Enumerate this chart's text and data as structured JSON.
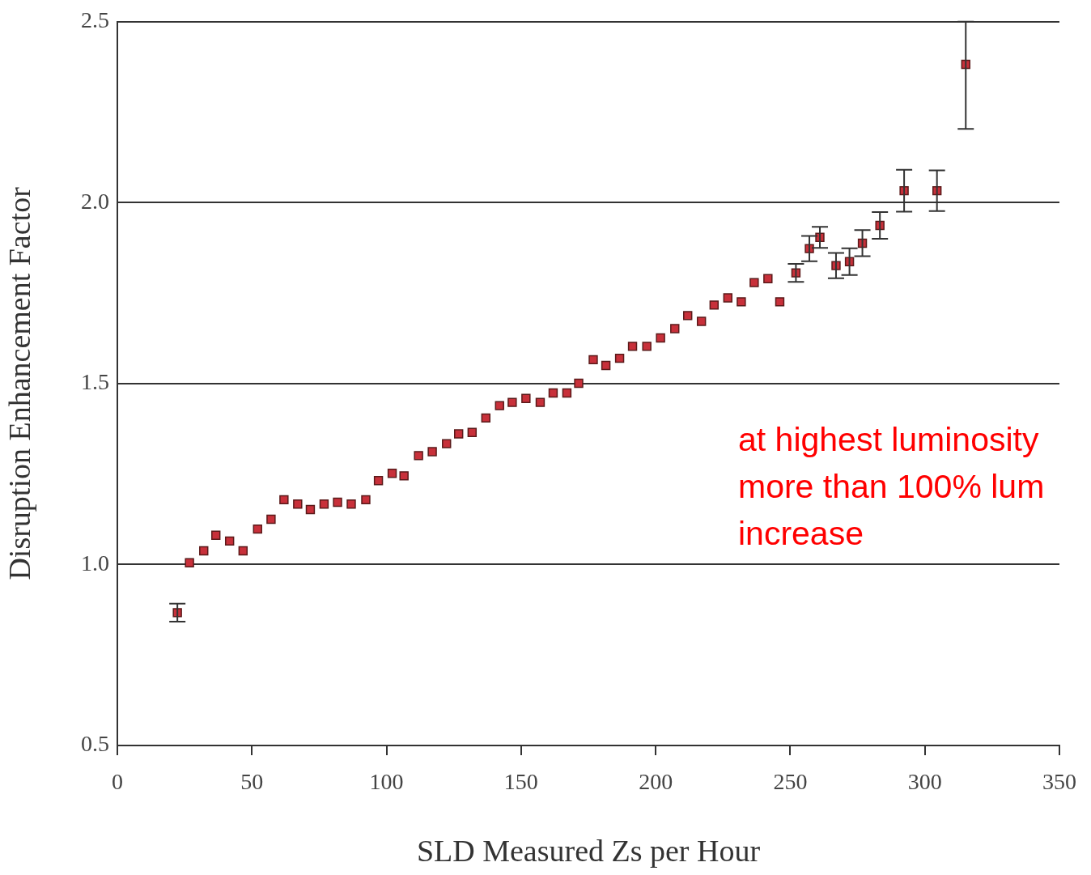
{
  "chart_data": {
    "type": "scatter",
    "xlabel": "SLD Measured Zs per Hour",
    "ylabel": "Disruption Enhancement Factor",
    "annotations": [
      "at highest luminosity more than 100% lum increase"
    ],
    "xlim": [
      0,
      350
    ],
    "xticks": [
      0,
      50,
      100,
      150,
      200,
      250,
      300,
      350
    ],
    "ylim": [
      0.5,
      2.5
    ],
    "yticks": [
      {
        "value": 0.5,
        "label": "0.5"
      },
      {
        "value": 1,
        "label": "1.0"
      },
      {
        "value": 1.5,
        "label": "1.5"
      },
      {
        "value": 2,
        "label": "2.0"
      },
      {
        "value": 2.5,
        "label": "2.5"
      }
    ],
    "grid": "y",
    "marker": "square",
    "legend": false,
    "series": [
      {
        "color": "#c8303a",
        "x": [
          22.3,
          26.8,
          32.1,
          36.6,
          41.7,
          46.7,
          52.1,
          57.1,
          61.9,
          67.0,
          71.7,
          76.8,
          81.8,
          86.9,
          92.3,
          97.0,
          102.1,
          106.5,
          111.9,
          117.0,
          122.3,
          126.8,
          131.8,
          136.9,
          142.0,
          146.7,
          151.8,
          157.1,
          161.9,
          167.0,
          171.4,
          176.8,
          181.5,
          186.6,
          191.4,
          196.7,
          201.8,
          207.1,
          211.9,
          217.0,
          221.7,
          226.8,
          231.8,
          236.6,
          241.7,
          246.1,
          252.1,
          257.1,
          261.0,
          267.0,
          272.0,
          276.8,
          283.3,
          292.3,
          304.5,
          315.2
        ],
        "values": [
          0.867,
          1.005,
          1.038,
          1.081,
          1.065,
          1.038,
          1.098,
          1.125,
          1.179,
          1.167,
          1.152,
          1.167,
          1.172,
          1.167,
          1.179,
          1.232,
          1.252,
          1.245,
          1.301,
          1.312,
          1.334,
          1.361,
          1.365,
          1.405,
          1.439,
          1.448,
          1.459,
          1.448,
          1.474,
          1.474,
          1.501,
          1.566,
          1.55,
          1.57,
          1.603,
          1.603,
          1.626,
          1.652,
          1.688,
          1.672,
          1.717,
          1.737,
          1.726,
          1.779,
          1.79,
          1.726,
          1.806,
          1.873,
          1.904,
          1.826,
          1.837,
          1.888,
          1.937,
          2.033,
          2.033,
          2.382
        ],
        "errors": [
          0.025,
          null,
          null,
          null,
          null,
          null,
          null,
          null,
          null,
          null,
          null,
          null,
          null,
          null,
          null,
          null,
          null,
          null,
          null,
          null,
          null,
          null,
          null,
          null,
          null,
          null,
          null,
          null,
          null,
          null,
          null,
          null,
          null,
          null,
          null,
          null,
          null,
          null,
          null,
          null,
          null,
          null,
          null,
          null,
          null,
          null,
          0.025,
          0.035,
          0.029,
          0.035,
          0.037,
          0.036,
          0.037,
          0.058,
          0.056,
          [
            2.204,
            2.5
          ]
        ]
      }
    ]
  }
}
